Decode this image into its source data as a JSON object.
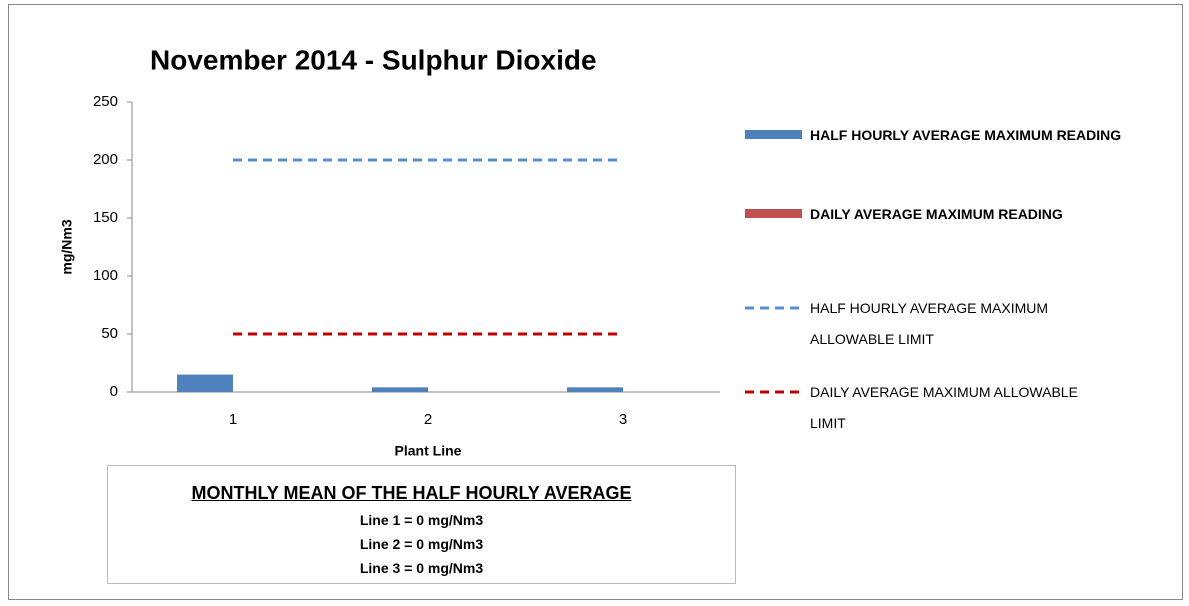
{
  "chart_data": {
    "type": "bar",
    "title": "November 2014 - Sulphur Dioxide",
    "x_label": "Plant Line",
    "y_label": "mg/Nm3",
    "categories": [
      "1",
      "2",
      "3"
    ],
    "series": [
      {
        "name": "HALF HOURLY AVERAGE MAXIMUM READING",
        "type": "bar",
        "color": "#4f81bd",
        "values": [
          15,
          4,
          4
        ]
      },
      {
        "name": "DAILY AVERAGE MAXIMUM READING",
        "type": "bar",
        "color": "#c0504d",
        "values": [
          0,
          0,
          0
        ]
      },
      {
        "name": "HALF HOURLY AVERAGE MAXIMUM ALLOWABLE LIMIT",
        "type": "line",
        "color": "#558ed5",
        "dashed": true,
        "values": [
          200,
          200,
          200
        ]
      },
      {
        "name": "DAILY AVERAGE MAXIMUM ALLOWABLE LIMIT",
        "type": "line",
        "color": "#c00000",
        "dashed": true,
        "values": [
          50,
          50,
          50
        ]
      }
    ],
    "ylim": [
      0,
      250
    ],
    "yticks": [
      0,
      50,
      100,
      150,
      200,
      250
    ],
    "grid": false,
    "legend": "right"
  },
  "annotation": {
    "title": "MONTHLY MEAN OF THE HALF HOURLY AVERAGE",
    "lines": [
      "Line 1 =  0 mg/Nm3",
      "Line 2 =  0 mg/Nm3",
      "Line 3 =  0 mg/Nm3"
    ]
  }
}
